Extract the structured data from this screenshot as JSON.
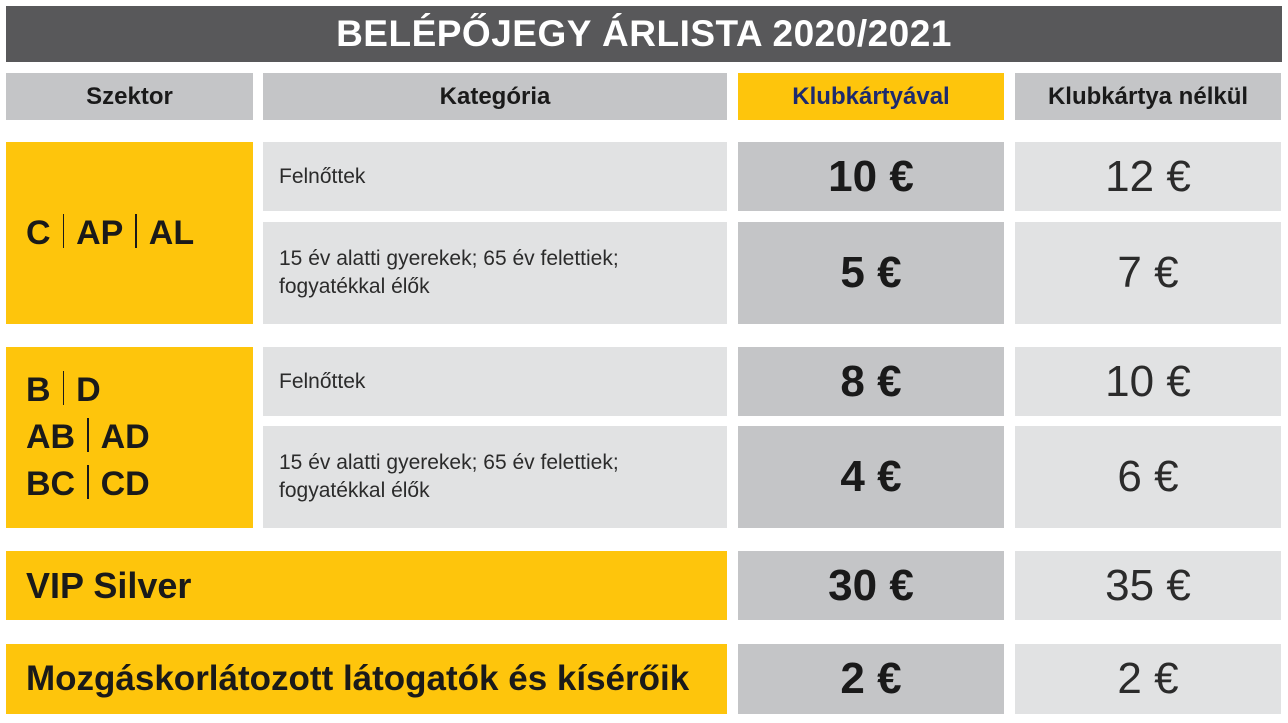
{
  "title": "BELÉPŐJEGY ÁRLISTA 2020/2021",
  "headers": {
    "sector": "Szektor",
    "category": "Kategória",
    "with_card": "Klubkártyával",
    "without_card": "Klubkártya nélkül"
  },
  "groups": [
    {
      "sector_lines": [
        [
          "C",
          "AP",
          "AL"
        ]
      ],
      "rows": [
        {
          "category": "Felnőttek",
          "with_card": "10 €",
          "without_card": "12 €"
        },
        {
          "category_lines": [
            "15 év alatti gyerekek; 65 év felettiek;",
            "fogyatékkal élők"
          ],
          "with_card": "5 €",
          "without_card": "7 €"
        }
      ]
    },
    {
      "sector_lines": [
        [
          "B",
          "D"
        ],
        [
          "AB",
          "AD"
        ],
        [
          "BC",
          "CD"
        ]
      ],
      "rows": [
        {
          "category": "Felnőttek",
          "with_card": "8 €",
          "without_card": "10 €"
        },
        {
          "category_lines": [
            "15 év alatti gyerekek; 65 év felettiek;",
            "fogyatékkal élők"
          ],
          "with_card": "4 €",
          "without_card": "6 €"
        }
      ]
    }
  ],
  "special_rows": [
    {
      "label": "VIP Silver",
      "with_card": "30 €",
      "without_card": "35 €"
    },
    {
      "label": "Mozgáskorlátozott látogatók és kísérőik",
      "with_card": "2 €",
      "without_card": "2 €"
    }
  ],
  "colors": {
    "yellow": "#fec50c",
    "dark_grey": "#58585a",
    "light_grey": "#e1e2e3",
    "mid_grey": "#c4c5c7",
    "navy": "#1d2a6e"
  }
}
